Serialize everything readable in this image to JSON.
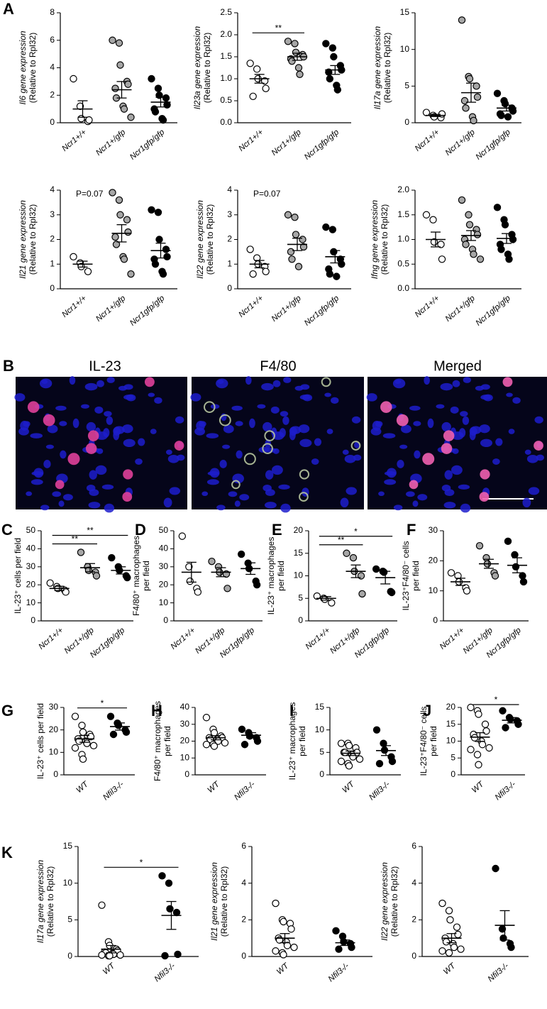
{
  "images": {
    "panel": "B",
    "titles": [
      "IL-23",
      "F4/80",
      "Merged"
    ]
  },
  "chart_data": [
    {
      "type": "dot",
      "panel": "A",
      "ylabel": [
        "Il6 gene expression",
        "(Relative to Rpl32)"
      ],
      "categories": [
        "Ncr1+/+",
        "Ncr1+/gfp",
        "Ncr1gfp/gfp"
      ],
      "colors": [
        "#ffffff",
        "#a6a6a6",
        "#000000"
      ],
      "ylim": [
        0,
        8
      ],
      "yticks": [
        0,
        2,
        4,
        6,
        8
      ],
      "values": [
        [
          3.2,
          1.2,
          0.3,
          0.1,
          0.2
        ],
        [
          6.0,
          5.8,
          4.2,
          3.0,
          2.8,
          2.5,
          1.8,
          1.2,
          1.0,
          0.4
        ],
        [
          3.2,
          2.5,
          2.0,
          1.8,
          1.3,
          1.0,
          0.8,
          0.3,
          0.2
        ]
      ],
      "means": [
        1.0,
        2.4,
        1.5
      ],
      "sems": [
        0.6,
        0.6,
        0.35
      ]
    },
    {
      "type": "dot",
      "ylabel": [
        "Il23a gene expression",
        "(Relative to Rpl32)"
      ],
      "categories": [
        "Ncr1+/+",
        "Ncr1+/gfp",
        "Ncr1gfp/gfp"
      ],
      "colors": [
        "#ffffff",
        "#a6a6a6",
        "#000000"
      ],
      "ylim": [
        0,
        2.5
      ],
      "yticks": [
        {
          "value": 0,
          "label": "0.0"
        },
        0.5,
        {
          "value": 1,
          "label": "1.0"
        },
        1.5,
        {
          "value": 2,
          "label": "2.0"
        },
        2.5
      ],
      "values": [
        [
          1.35,
          1.22,
          1.0,
          0.95,
          0.78,
          0.6
        ],
        [
          1.85,
          1.8,
          1.6,
          1.55,
          1.5,
          1.45,
          1.4,
          1.25,
          1.1
        ],
        [
          1.8,
          1.7,
          1.5,
          1.3,
          1.2,
          1.15,
          1.0,
          0.85,
          0.75
        ]
      ],
      "means": [
        1.0,
        1.5,
        1.2
      ],
      "sems": [
        0.1,
        0.08,
        0.1
      ],
      "significance": [
        {
          "label": "**",
          "groups": [
            0,
            1
          ]
        }
      ]
    },
    {
      "type": "dot",
      "ylabel": [
        "Il17a gene expression",
        "(Relative to Rpl32)"
      ],
      "categories": [
        "Ncr1+/+",
        "Ncr1+/gfp",
        "Ncr1gfp/gfp"
      ],
      "colors": [
        "#ffffff",
        "#a6a6a6",
        "#000000"
      ],
      "ylim": [
        0,
        15
      ],
      "yticks": [
        0,
        5,
        10,
        15
      ],
      "values": [
        [
          1.4,
          1.0,
          0.8,
          0.7,
          1.2
        ],
        [
          14,
          6.3,
          6.0,
          5.0,
          3.5,
          3.0,
          2.0,
          0.8,
          0.3
        ],
        [
          4.0,
          3.0,
          2.6,
          2.0,
          1.6,
          1.2,
          1.0,
          0.8
        ]
      ],
      "means": [
        1.0,
        4.1,
        2.0
      ],
      "sems": [
        0.15,
        1.3,
        0.4
      ]
    },
    {
      "type": "dot",
      "ylabel": [
        "Il21 gene expression",
        "(Relative to Rpl32)"
      ],
      "annotation": "P=0.07",
      "categories": [
        "Ncr1+/+",
        "Ncr1+/gfp",
        "Ncr1gfp/gfp"
      ],
      "colors": [
        "#ffffff",
        "#a6a6a6",
        "#000000"
      ],
      "ylim": [
        0,
        4
      ],
      "yticks": [
        0,
        1,
        2,
        3,
        4
      ],
      "values": [
        [
          1.3,
          1.05,
          0.9,
          0.7
        ],
        [
          3.9,
          3.6,
          3.0,
          2.8,
          2.3,
          2.1,
          1.8,
          1.3,
          1.2,
          0.6
        ],
        [
          3.2,
          3.1,
          2.0,
          1.6,
          1.3,
          1.2,
          1.0,
          0.7,
          0.6
        ]
      ],
      "means": [
        1.0,
        2.25,
        1.55
      ],
      "sems": [
        0.12,
        0.35,
        0.3
      ]
    },
    {
      "type": "dot",
      "ylabel": [
        "Il22 gene expression",
        "(Relative to Rpl32)"
      ],
      "annotation": "P=0.07",
      "categories": [
        "Ncr1+/+",
        "Ncr1+/gfp",
        "Ncr1gfp/gfp"
      ],
      "colors": [
        "#ffffff",
        "#a6a6a6",
        "#000000"
      ],
      "ylim": [
        0,
        4
      ],
      "yticks": [
        0,
        1,
        2,
        3,
        4
      ],
      "values": [
        [
          1.6,
          1.25,
          1.0,
          0.9,
          0.7,
          0.6
        ],
        [
          3.0,
          2.9,
          2.2,
          2.0,
          1.7,
          1.5,
          1.2,
          0.9
        ],
        [
          2.5,
          2.4,
          1.5,
          1.2,
          1.0,
          0.8,
          0.6,
          0.5
        ]
      ],
      "means": [
        1.0,
        1.8,
        1.3
      ],
      "sems": [
        0.15,
        0.25,
        0.25
      ]
    },
    {
      "type": "dot",
      "ylabel": [
        "Ifng gene expression",
        "(Relative to Rpl32)"
      ],
      "categories": [
        "Ncr1+/+",
        "Ncr1+/gfp",
        "Ncr1gfp/gfp"
      ],
      "colors": [
        "#ffffff",
        "#a6a6a6",
        "#000000"
      ],
      "ylim": [
        0,
        2
      ],
      "yticks": [
        {
          "value": 0,
          "label": "0.0"
        },
        0.5,
        {
          "value": 1,
          "label": "1.0"
        },
        1.5,
        {
          "value": 2,
          "label": "2.0"
        }
      ],
      "values": [
        [
          1.5,
          1.4,
          0.95,
          0.9,
          0.6
        ],
        [
          1.8,
          1.5,
          1.3,
          1.2,
          1.1,
          1.0,
          0.9,
          0.8,
          0.7,
          0.6
        ],
        [
          1.65,
          1.4,
          1.3,
          1.1,
          1.0,
          0.9,
          0.8,
          0.7,
          0.6
        ]
      ],
      "means": [
        1.0,
        1.08,
        1.02
      ],
      "sems": [
        0.15,
        0.1,
        0.1
      ]
    },
    {
      "type": "dot",
      "panel": "C",
      "ylabel": [
        "IL-23⁺ cells per field"
      ],
      "categories": [
        "Ncr1+/+",
        "Ncr1+/gfp",
        "Ncr1gfp/gfp"
      ],
      "colors": [
        "#ffffff",
        "#a6a6a6",
        "#000000"
      ],
      "ylim": [
        0,
        50
      ],
      "yticks": [
        0,
        10,
        20,
        30,
        40,
        50
      ],
      "values": [
        [
          21,
          19,
          18,
          17,
          16
        ],
        [
          38,
          30,
          28,
          27,
          25
        ],
        [
          35,
          30,
          28,
          25,
          24
        ]
      ],
      "means": [
        18,
        29.5,
        28
      ],
      "sems": [
        1.2,
        2.3,
        2
      ],
      "significance": [
        {
          "label": "**",
          "groups": [
            0,
            1
          ]
        },
        {
          "label": "**",
          "groups": [
            0,
            2
          ]
        }
      ]
    },
    {
      "type": "dot",
      "panel": "D",
      "ylabel": [
        "F4/80⁺ macrophages",
        "per field"
      ],
      "categories": [
        "Ncr1+/+",
        "Ncr1+/gfp",
        "Ncr1gfp/gfp"
      ],
      "colors": [
        "#ffffff",
        "#a6a6a6",
        "#000000"
      ],
      "ylim": [
        0,
        50
      ],
      "yticks": [
        0,
        10,
        20,
        30,
        40,
        50
      ],
      "values": [
        [
          47,
          30,
          22,
          18,
          16
        ],
        [
          33,
          30,
          27,
          26,
          18
        ],
        [
          37,
          32,
          29,
          22,
          20
        ]
      ],
      "means": [
        27,
        27,
        29
      ],
      "sems": [
        5.5,
        2.5,
        3.2
      ]
    },
    {
      "type": "dot",
      "panel": "E",
      "ylabel": [
        "IL-23⁺ macrophages",
        "per field"
      ],
      "categories": [
        "Ncr1+/+",
        "Ncr1+/gfp",
        "Ncr1gfp/gfp"
      ],
      "colors": [
        "#ffffff",
        "#a6a6a6",
        "#000000"
      ],
      "ylim": [
        0,
        20
      ],
      "yticks": [
        0,
        5,
        10,
        15,
        20
      ],
      "values": [
        [
          5.5,
          5.0,
          4.8,
          4.0
        ],
        [
          15,
          14,
          11,
          10,
          6
        ],
        [
          11.5,
          11,
          10.8,
          6.5,
          6.3
        ]
      ],
      "means": [
        5,
        11,
        9.6
      ],
      "sems": [
        0.4,
        1.4,
        1.4
      ],
      "significance": [
        {
          "label": "**",
          "groups": [
            0,
            1
          ]
        },
        {
          "label": "*",
          "groups": [
            0,
            2
          ]
        }
      ]
    },
    {
      "type": "dot",
      "panel": "F",
      "ylabel": [
        "IL-23⁺F4/80⁻ cells",
        "per field"
      ],
      "categories": [
        "Ncr1+/+",
        "Ncr1+/gfp",
        "Ncr1gfp/gfp"
      ],
      "colors": [
        "#ffffff",
        "#a6a6a6",
        "#000000"
      ],
      "ylim": [
        0,
        30
      ],
      "yticks": [
        0,
        10,
        20,
        30
      ],
      "values": [
        [
          16,
          15,
          13,
          11,
          10
        ],
        [
          25,
          21,
          19,
          16,
          15
        ],
        [
          26.5,
          22,
          18,
          15,
          13
        ]
      ],
      "means": [
        13,
        19,
        18.5
      ],
      "sems": [
        1.2,
        1.5,
        2.5
      ]
    },
    {
      "type": "dot",
      "panel": "G",
      "ylabel": [
        "IL-23⁺ cells per field"
      ],
      "categories": [
        "WT",
        "Nfil3-/-"
      ],
      "colors": [
        "#ffffff",
        "#000000"
      ],
      "ylim": [
        0,
        30
      ],
      "yticks": [
        0,
        10,
        20,
        30
      ],
      "values": [
        [
          26,
          22,
          19,
          18,
          17,
          16,
          15,
          15,
          14,
          13,
          12,
          9,
          7
        ],
        [
          26,
          23,
          22,
          20,
          19,
          18
        ]
      ],
      "means": [
        16,
        21.5
      ],
      "sems": [
        1.5,
        1.6
      ],
      "significance": [
        {
          "label": "*",
          "groups": [
            0,
            1
          ]
        }
      ]
    },
    {
      "type": "dot",
      "panel": "H",
      "ylabel": [
        "F4/80⁺ macrophages",
        "per field"
      ],
      "categories": [
        "WT",
        "Nfil3-/-"
      ],
      "colors": [
        "#ffffff",
        "#000000"
      ],
      "ylim": [
        0,
        40
      ],
      "yticks": [
        0,
        10,
        20,
        30,
        40
      ],
      "values": [
        [
          34,
          27,
          25,
          23,
          22,
          22,
          21,
          21,
          20,
          19,
          18,
          18,
          17
        ],
        [
          27,
          25,
          23,
          22,
          20,
          18
        ]
      ],
      "means": [
        22,
        23.5
      ],
      "sems": [
        1.2,
        1.5
      ]
    },
    {
      "type": "dot",
      "panel": "I",
      "ylabel": [
        "IL-23⁺ macrophages",
        "per field"
      ],
      "categories": [
        "WT",
        "Nfil3-/-"
      ],
      "colors": [
        "#ffffff",
        "#000000"
      ],
      "ylim": [
        0,
        15
      ],
      "yticks": [
        0,
        5,
        10,
        15
      ],
      "values": [
        [
          7,
          7,
          6.5,
          6,
          5,
          5,
          5,
          4.5,
          4,
          3.5,
          3,
          2.5,
          2
        ],
        [
          10,
          7,
          5.5,
          4,
          3,
          2.5
        ]
      ],
      "means": [
        4.8,
        5.4
      ],
      "sems": [
        0.5,
        1.1
      ]
    },
    {
      "type": "dot",
      "panel": "J",
      "ylabel": [
        "IL-23⁺F4/80⁻ cells",
        "per field"
      ],
      "categories": [
        "WT",
        "Nfil3-/-"
      ],
      "colors": [
        "#ffffff",
        "#000000"
      ],
      "ylim": [
        0,
        20
      ],
      "yticks": [
        0,
        5,
        10,
        15,
        20
      ],
      "values": [
        [
          20,
          19,
          18,
          15,
          13,
          12,
          11,
          10,
          9,
          8,
          7.5,
          6,
          3
        ],
        [
          19,
          17,
          16.5,
          16,
          15,
          14
        ]
      ],
      "means": [
        11.2,
        16.2
      ],
      "sems": [
        1.3,
        0.8
      ],
      "significance": [
        {
          "label": "*",
          "groups": [
            0,
            1
          ]
        }
      ]
    },
    {
      "type": "dot",
      "panel": "K",
      "ylabel": [
        "Il17a gene expression",
        "(Relative to Rpl32)"
      ],
      "categories": [
        "WT",
        "Nfil3-/-"
      ],
      "colors": [
        "#ffffff",
        "#000000"
      ],
      "ylim": [
        0,
        15
      ],
      "yticks": [
        0,
        5,
        10,
        15
      ],
      "values": [
        [
          7,
          2,
          1.5,
          1,
          0.8,
          0.6,
          0.5,
          0.4,
          0.3,
          0.2,
          0.2,
          0.1,
          0.1
        ],
        [
          11,
          10,
          6.5,
          6,
          0.3,
          0.1
        ]
      ],
      "means": [
        1.0,
        5.6
      ],
      "sems": [
        0.5,
        1.9
      ],
      "significance": [
        {
          "label": "*",
          "groups": [
            0,
            1
          ]
        }
      ]
    },
    {
      "type": "dot",
      "ylabel": [
        "Il21 gene expression",
        "(Relative to Rpl32)"
      ],
      "categories": [
        "WT",
        "Nfil3-/-"
      ],
      "colors": [
        "#ffffff",
        "#000000"
      ],
      "ylim": [
        0,
        6
      ],
      "yticks": [
        0,
        2,
        4,
        6
      ],
      "values": [
        [
          2.9,
          2.0,
          1.9,
          1.8,
          1.5,
          1.0,
          0.9,
          0.8,
          0.6,
          0.5,
          0.3,
          0.2,
          0.1
        ],
        [
          1.4,
          1.1,
          0.8,
          0.7,
          0.5,
          0.4
        ]
      ],
      "means": [
        1.0,
        0.75
      ],
      "sems": [
        0.25,
        0.15
      ]
    },
    {
      "type": "dot",
      "ylabel": [
        "Il22 gene expression",
        "(Relative to Rpl32)"
      ],
      "categories": [
        "WT",
        "Nfil3-/-"
      ],
      "colors": [
        "#ffffff",
        "#000000"
      ],
      "ylim": [
        0,
        6
      ],
      "yticks": [
        0,
        2,
        4,
        6
      ],
      "values": [
        [
          2.9,
          2.5,
          2.0,
          1.6,
          1.2,
          1.0,
          0.8,
          0.7,
          0.5,
          0.4,
          0.3,
          0.2
        ],
        [
          4.8,
          1.5,
          1.0,
          0.7,
          0.5
        ]
      ],
      "means": [
        1.0,
        1.7
      ],
      "sems": [
        0.25,
        0.8
      ]
    }
  ]
}
